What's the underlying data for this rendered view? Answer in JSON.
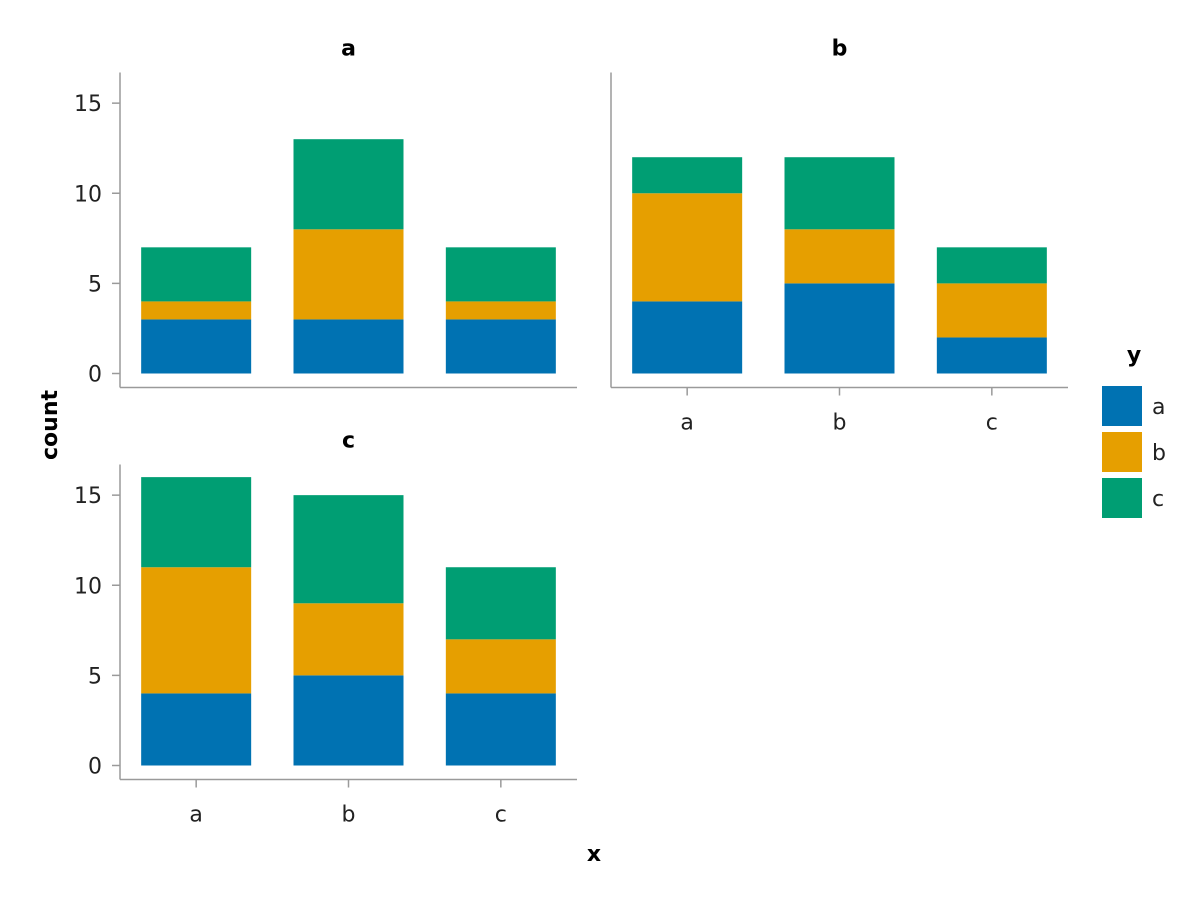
{
  "chart_data": {
    "type": "bar",
    "stacked": true,
    "categories": [
      "a",
      "b",
      "c"
    ],
    "xlabel": "x",
    "ylabel": "count",
    "ylim": [
      0,
      16.7
    ],
    "yticks": [
      0,
      5,
      10,
      15
    ],
    "grid": false,
    "legend": {
      "title": "y",
      "placement": "right",
      "entries": [
        {
          "name": "a",
          "color": "#0072b2"
        },
        {
          "name": "b",
          "color": "#e69f00"
        },
        {
          "name": "c",
          "color": "#009e73"
        }
      ]
    },
    "facets": [
      {
        "title": "a",
        "series": [
          {
            "name": "a",
            "values": [
              3,
              3,
              3
            ]
          },
          {
            "name": "b",
            "values": [
              1,
              5,
              1
            ]
          },
          {
            "name": "c",
            "values": [
              3,
              5,
              3
            ]
          }
        ]
      },
      {
        "title": "b",
        "series": [
          {
            "name": "a",
            "values": [
              4,
              5,
              2
            ]
          },
          {
            "name": "b",
            "values": [
              6,
              3,
              3
            ]
          },
          {
            "name": "c",
            "values": [
              2,
              4,
              2
            ]
          }
        ]
      },
      {
        "title": "c",
        "series": [
          {
            "name": "a",
            "values": [
              4,
              5,
              4
            ]
          },
          {
            "name": "b",
            "values": [
              7,
              4,
              3
            ]
          },
          {
            "name": "c",
            "values": [
              5,
              6,
              4
            ]
          }
        ]
      }
    ]
  }
}
